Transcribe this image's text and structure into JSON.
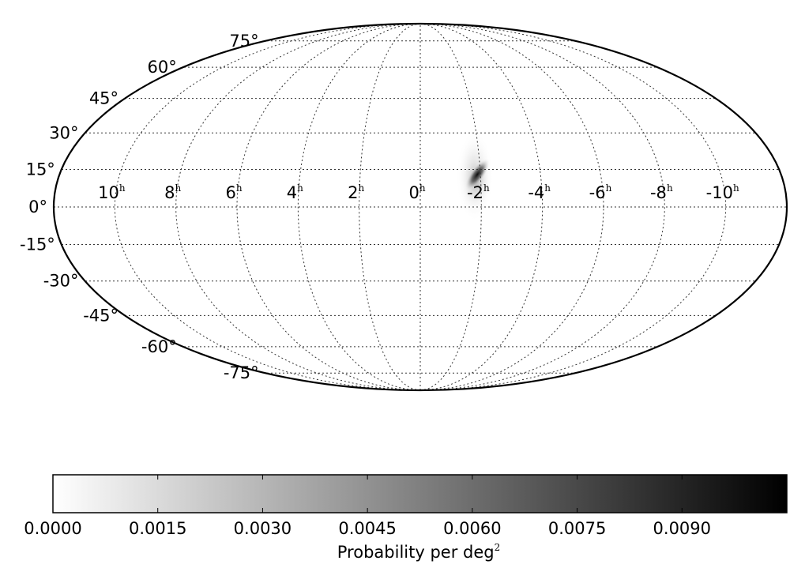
{
  "chart_data": {
    "type": "heatmap",
    "projection": "Mollweide",
    "grid": true,
    "ra_ticks": [
      {
        "value": "10",
        "unit": "h"
      },
      {
        "value": "8",
        "unit": "h"
      },
      {
        "value": "6",
        "unit": "h"
      },
      {
        "value": "4",
        "unit": "h"
      },
      {
        "value": "2",
        "unit": "h"
      },
      {
        "value": "0",
        "unit": "h"
      },
      {
        "value": "-2",
        "unit": "h"
      },
      {
        "value": "-4",
        "unit": "h"
      },
      {
        "value": "-6",
        "unit": "h"
      },
      {
        "value": "-8",
        "unit": "h"
      },
      {
        "value": "-10",
        "unit": "h"
      }
    ],
    "dec_ticks": [
      "75°",
      "60°",
      "45°",
      "30°",
      "15°",
      "0°",
      "-15°",
      "-30°",
      "-45°",
      "-60°",
      "-75°"
    ],
    "probability_region": {
      "peak_ra_hours": -1.9,
      "peak_dec_deg": 13,
      "ra_range_hours": [
        -2.3,
        -1.4
      ],
      "dec_range_deg": [
        -6,
        31
      ],
      "peak_value": 0.0095
    },
    "colorbar": {
      "colormap": "white-to-black",
      "range": [
        0.0,
        0.0105
      ],
      "ticks": [
        "0.0000",
        "0.0015",
        "0.0030",
        "0.0045",
        "0.0060",
        "0.0075",
        "0.0090"
      ],
      "label": "Probability per deg",
      "label_superscript": "2"
    }
  }
}
